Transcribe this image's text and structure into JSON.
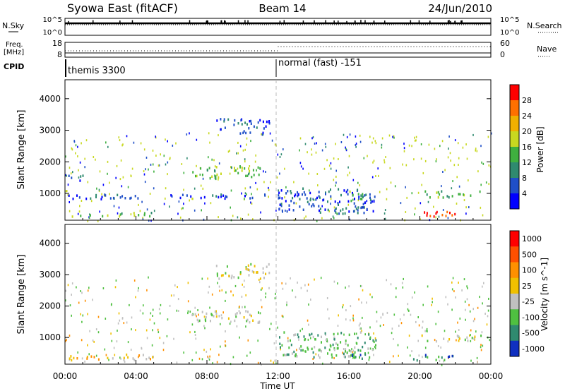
{
  "header": {
    "station": "Syowa East (fitACF)",
    "beam": "Beam 14",
    "date": "24/Jun/2010"
  },
  "top_panels": {
    "nsky_label": "N.Sky",
    "nsky_ticks": [
      "10^5",
      "10^0"
    ],
    "nsearch_label": "N.Search",
    "nsearch_ticks": [
      "10^5",
      "10^0"
    ],
    "freq_label_line1": "Freq.",
    "freq_label_line2": "[MHz]",
    "freq_ticks": [
      "18",
      "8"
    ],
    "nave_label": "Nave",
    "nave_ticks": [
      "60",
      "0"
    ],
    "cpid_label": "CPID",
    "cpid_modes": [
      {
        "label": "themis 3300",
        "start_hour": 0
      },
      {
        "label": "normal (fast) -151",
        "start_hour": 12
      }
    ]
  },
  "chart_data": [
    {
      "type": "heatmap",
      "name": "power-panel",
      "xlabel": "",
      "ylabel": "Slant Range [km]",
      "xlim": [
        0,
        24
      ],
      "ylim": [
        150,
        4600
      ],
      "yticks": [
        "1000",
        "2000",
        "3000",
        "4000"
      ],
      "xticks": [
        "00:00",
        "04:00",
        "08:00",
        "12:00",
        "16:00",
        "20:00",
        "00:00"
      ],
      "colorbar": {
        "label": "Power [dB]",
        "tick_labels": [
          "4",
          "8",
          "12",
          "16",
          "20",
          "24",
          "28"
        ],
        "colors": [
          "#0000ff",
          "#1f4fc8",
          "#2f8a6f",
          "#3fb03f",
          "#c8d820",
          "#f0b000",
          "#ff7000",
          "#ff0000"
        ]
      },
      "regions": [
        {
          "t": [
            0.0,
            5.0
          ],
          "r": [
            300,
            420
          ],
          "level": 3
        },
        {
          "t": [
            0.0,
            1.0
          ],
          "r": [
            1400,
            1600
          ],
          "level": 1
        },
        {
          "t": [
            0.0,
            12.5
          ],
          "r": [
            850,
            1000
          ],
          "level": 1
        },
        {
          "t": [
            7.0,
            11.0
          ],
          "r": [
            1500,
            1900
          ],
          "level": 3
        },
        {
          "t": [
            8.5,
            11.5
          ],
          "r": [
            2900,
            3400
          ],
          "level": 1
        },
        {
          "t": [
            12.0,
            17.5
          ],
          "r": [
            400,
            1200
          ],
          "level": 1
        },
        {
          "t": [
            15.0,
            17.0
          ],
          "r": [
            350,
            600
          ],
          "level": 2
        },
        {
          "t": [
            16.0,
            17.0
          ],
          "r": [
            800,
            1200
          ],
          "level": 3
        },
        {
          "t": [
            19.5,
            22.0
          ],
          "r": [
            300,
            500
          ],
          "level": 7
        },
        {
          "t": [
            20.0,
            23.5
          ],
          "r": [
            900,
            1100
          ],
          "level": 3
        }
      ]
    },
    {
      "type": "heatmap",
      "name": "velocity-panel",
      "xlabel": "Time UT",
      "ylabel": "Slant Range [km]",
      "xlim": [
        0,
        24
      ],
      "ylim": [
        150,
        4600
      ],
      "yticks": [
        "1000",
        "2000",
        "3000",
        "4000"
      ],
      "xticks": [
        "00:00",
        "04:00",
        "08:00",
        "12:00",
        "16:00",
        "20:00",
        "00:00"
      ],
      "colorbar": {
        "label": "Velocity [m s^-1]",
        "tick_labels": [
          "1000",
          "500",
          "100",
          "25",
          "-25",
          "-100",
          "-500",
          "-1000"
        ],
        "colors": [
          "#1030c0",
          "#2f8a6f",
          "#4fc040",
          "#c0c0c0",
          "#f0c000",
          "#ff9000",
          "#ff5000",
          "#ff0000"
        ]
      },
      "regions": [
        {
          "t": [
            0.0,
            5.0
          ],
          "r": [
            300,
            500
          ],
          "level": 4
        },
        {
          "t": [
            7.0,
            11.0
          ],
          "r": [
            1500,
            1900
          ],
          "level": 3
        },
        {
          "t": [
            8.5,
            11.5
          ],
          "r": [
            2900,
            3400
          ],
          "level": 3
        },
        {
          "t": [
            12.0,
            17.5
          ],
          "r": [
            400,
            1200
          ],
          "level": 2
        },
        {
          "t": [
            15.0,
            17.0
          ],
          "r": [
            350,
            600
          ],
          "level": 1
        },
        {
          "t": [
            19.5,
            22.0
          ],
          "r": [
            300,
            500
          ],
          "level": 1
        },
        {
          "t": [
            20.0,
            23.5
          ],
          "r": [
            900,
            1100
          ],
          "level": 3
        }
      ]
    }
  ]
}
